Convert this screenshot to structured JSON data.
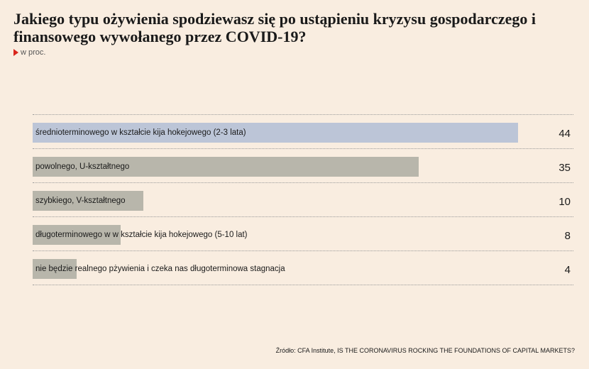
{
  "chart_data": {
    "type": "bar",
    "orientation": "horizontal",
    "title": "Jakiego typu ożywienia spodziewasz się po ustąpieniu kryzysu gospodarczego i finansowego wywołanego przez COVID-19?",
    "unit_label": "w proc.",
    "categories": [
      "średnioterminowego w kształcie kija hokejowego (2-3 lata)",
      "powolnego, U-kształtnego",
      "szybkiego, V-kształtnego",
      "długoterminowego w w kształcie kija hokejowego (5-10 lat)",
      "nie będzie realnego pżywienia i czeka nas długoterminowa stagnacja"
    ],
    "values": [
      44,
      35,
      10,
      8,
      4
    ],
    "value_labels": [
      "44",
      "35",
      "10",
      "8",
      "4"
    ],
    "xlim": [
      0,
      49
    ],
    "grid": false,
    "legend": "none",
    "colors": {
      "highlight_bar": "#bcc5d7",
      "default_bar": "#b8b6ab",
      "background": "#f9ede0",
      "marker": "#d9261c"
    },
    "source": "Źródło: CFA Institute, IS THE CORONAVIRUS ROCKING THE FOUNDATIONS OF CAPITAL MARKETS?"
  }
}
